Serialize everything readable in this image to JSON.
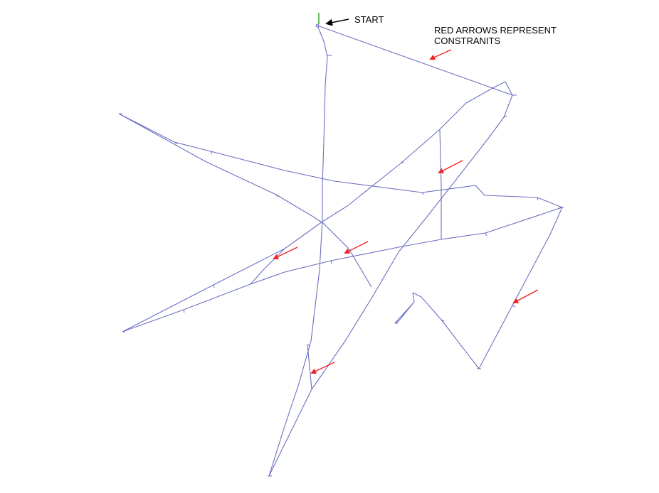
{
  "labels": {
    "start": "START",
    "legend_line1": "RED ARROWS REPRESENT",
    "legend_line2": "CONSTRANITS"
  },
  "colors": {
    "background": "#ffffff",
    "trajectory": "#6b6fc2",
    "constraint_arrow": "#ee2222",
    "start_arrow": "#000000",
    "start_marker": "#33aa33"
  },
  "constraint_count": 6
}
